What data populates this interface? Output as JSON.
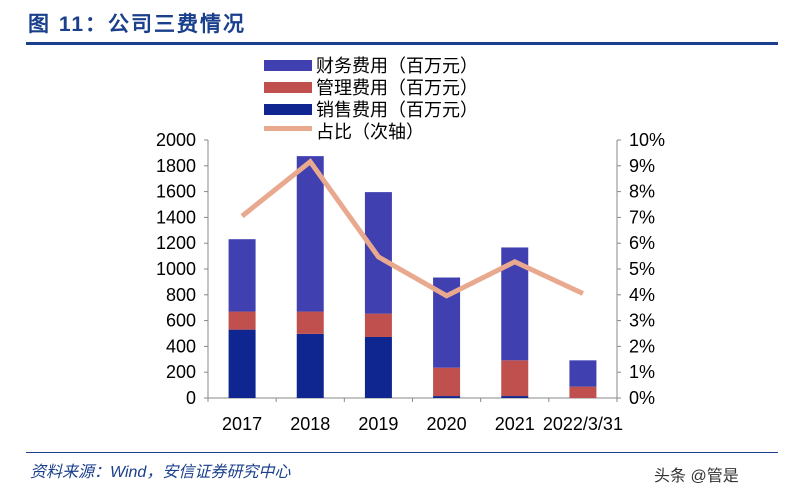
{
  "title": "图 11：公司三费情况",
  "source": "资料来源：Wind，安信证券研究中心",
  "watermark": "头条 @管是",
  "chart_data": {
    "type": "bar",
    "categories": [
      "2017",
      "2018",
      "2019",
      "2020",
      "2021",
      "2022/3/31"
    ],
    "series": [
      {
        "name": "销售费用（百万元）",
        "type": "stacked-bar",
        "color": "#0f2590",
        "values": [
          530,
          497,
          473,
          15,
          15,
          0
        ]
      },
      {
        "name": "管理费用（百万元）",
        "type": "stacked-bar",
        "color": "#c0504d",
        "values": [
          140,
          173,
          181,
          220,
          277,
          88
        ]
      },
      {
        "name": "财务费用（百万元）",
        "type": "stacked-bar",
        "color": "#4040b0",
        "values": [
          561,
          1205,
          942,
          699,
          875,
          204
        ]
      },
      {
        "name": "占比（次轴）",
        "type": "line",
        "axis": "secondary",
        "color": "#e9a98f",
        "values": [
          7.05,
          9.16,
          5.47,
          3.96,
          5.28,
          4.05
        ]
      }
    ],
    "legend_order": [
      "财务费用（百万元）",
      "管理费用（百万元）",
      "销售费用（百万元）",
      "占比（次轴）"
    ],
    "legend_placement": "top",
    "ylim": [
      0,
      2000
    ],
    "yticks": [
      "0",
      "200",
      "400",
      "600",
      "800",
      "1000",
      "1200",
      "1400",
      "1600",
      "1800",
      "2000"
    ],
    "y2lim": [
      0,
      10
    ],
    "y2ticks": [
      "0%",
      "1%",
      "2%",
      "3%",
      "4%",
      "5%",
      "6%",
      "7%",
      "8%",
      "9%",
      "10%"
    ],
    "grid": false
  }
}
